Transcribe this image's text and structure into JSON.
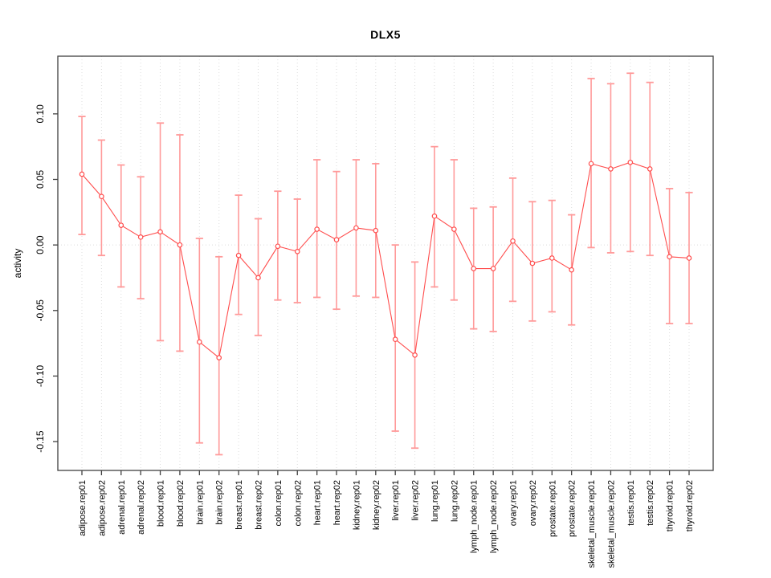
{
  "chart_data": {
    "type": "line",
    "subtype": "points-with-error-bars",
    "title": "DLX5",
    "xlabel": "",
    "ylabel": "activity",
    "legend": "none",
    "grid": "vertical-dotted-per-category, dotted-zero-line",
    "ylim": [
      -0.172,
      0.144
    ],
    "yticks": [
      -0.15,
      -0.1,
      -0.05,
      0.0,
      0.05,
      0.1
    ],
    "ytick_labels": [
      "-0.15",
      "-0.10",
      "-0.05",
      "0.00",
      "0.05",
      "0.10"
    ],
    "categories": [
      "adipose.rep01",
      "adipose.rep02",
      "adrenal.rep01",
      "adrenal.rep02",
      "blood.rep01",
      "blood.rep02",
      "brain.rep01",
      "brain.rep02",
      "breast.rep01",
      "breast.rep02",
      "colon.rep01",
      "colon.rep02",
      "heart.rep01",
      "heart.rep02",
      "kidney.rep01",
      "kidney.rep02",
      "liver.rep01",
      "liver.rep02",
      "lung.rep01",
      "lung.rep02",
      "lymph_node.rep01",
      "lymph_node.rep02",
      "ovary.rep01",
      "ovary.rep02",
      "prostate.rep01",
      "prostate.rep02",
      "skeletal_muscle.rep01",
      "skeletal_muscle.rep02",
      "testis.rep01",
      "testis.rep02",
      "thyroid.rep01",
      "thyroid.rep02"
    ],
    "series": [
      {
        "name": "activity",
        "values": [
          0.054,
          0.037,
          0.015,
          0.006,
          0.01,
          0.0,
          -0.074,
          -0.086,
          -0.008,
          -0.025,
          -0.001,
          -0.005,
          0.012,
          0.004,
          0.013,
          0.011,
          -0.072,
          -0.084,
          0.022,
          0.012,
          -0.018,
          -0.018,
          0.003,
          -0.014,
          -0.01,
          -0.019,
          0.062,
          0.058,
          0.063,
          0.058,
          -0.009,
          -0.01
        ],
        "err_high": [
          0.098,
          0.08,
          0.061,
          0.052,
          0.093,
          0.084,
          0.005,
          -0.009,
          0.038,
          0.02,
          0.041,
          0.035,
          0.065,
          0.056,
          0.065,
          0.062,
          0.0,
          -0.013,
          0.075,
          0.065,
          0.028,
          0.029,
          0.051,
          0.033,
          0.034,
          0.023,
          0.127,
          0.123,
          0.131,
          0.124,
          0.043,
          0.04
        ],
        "err_low": [
          0.008,
          -0.008,
          -0.032,
          -0.041,
          -0.073,
          -0.081,
          -0.151,
          -0.16,
          -0.053,
          -0.069,
          -0.042,
          -0.044,
          -0.04,
          -0.049,
          -0.039,
          -0.04,
          -0.142,
          -0.155,
          -0.032,
          -0.042,
          -0.064,
          -0.066,
          -0.043,
          -0.058,
          -0.051,
          -0.061,
          -0.002,
          -0.006,
          -0.005,
          -0.008,
          -0.06,
          -0.06
        ]
      }
    ],
    "colors": {
      "point_line": "#ff4d4d",
      "error_bar": "#ff9a9a",
      "grid": "#dcdcdc",
      "axis": "#404040",
      "text": "#000000",
      "background": "#ffffff"
    }
  }
}
